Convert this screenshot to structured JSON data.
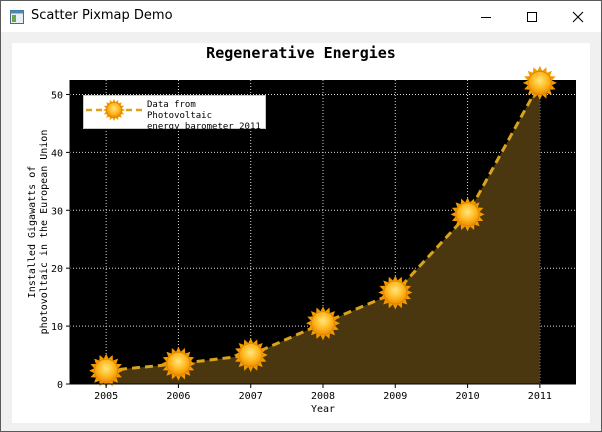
{
  "window": {
    "title": "Scatter Pixmap Demo",
    "icons": {
      "app": "app-window-icon",
      "minimize": "minimize-icon",
      "maximize": "maximize-icon",
      "close": "close-icon"
    }
  },
  "colors": {
    "plot_background": "#000000",
    "grid": "#d9d9d9",
    "area_fill": "#4a3710",
    "line": "#d9a31c",
    "marker_core": "#ffb820",
    "marker_ray": "#f29a00"
  },
  "chart_data": {
    "type": "area",
    "title": "Regenerative Energies",
    "xlabel": "Year",
    "ylabel": "Installed Gigawatts of photovoltaic in the European Union",
    "ylabel_lines": [
      "Installed Gigawatts of",
      "photovoltaic in the European Union"
    ],
    "x": [
      2005,
      2006,
      2007,
      2008,
      2009,
      2010,
      2011
    ],
    "x_tick_labels": [
      "2005",
      "2006",
      "2007",
      "2008",
      "2009",
      "2010",
      "2011"
    ],
    "y_ticks": [
      0,
      10,
      20,
      30,
      40,
      50
    ],
    "y_tick_labels": [
      "0",
      "10",
      "20",
      "30",
      "40",
      "50"
    ],
    "xlim": [
      2004.5,
      2011.5
    ],
    "ylim": [
      0,
      52.5
    ],
    "grid": true,
    "legend_position": "top-left",
    "series": [
      {
        "name": "Data from Photovoltaic energy barometer 2011",
        "name_lines": [
          "Data from Photovoltaic",
          "energy barometer 2011"
        ],
        "values": [
          2.3,
          3.5,
          5.0,
          10.5,
          15.8,
          29.3,
          52.0
        ],
        "marker": "sun",
        "line_style": "dashed"
      }
    ]
  }
}
